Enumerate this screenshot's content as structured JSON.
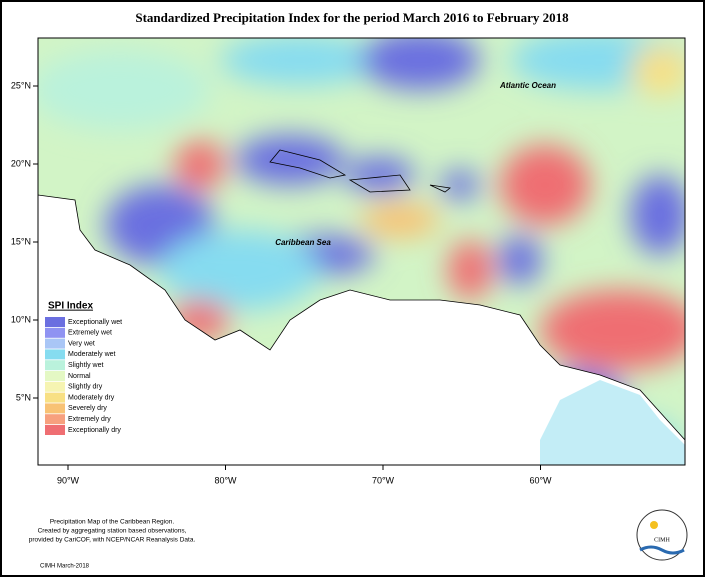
{
  "title": "Standardized Precipitation Index for the period March 2016 to February 2018",
  "lat_labels": [
    "25°N",
    "20°N",
    "15°N",
    "10°N",
    "5°N"
  ],
  "lon_labels": [
    "90°W",
    "80°W",
    "70°W",
    "60°W"
  ],
  "places": {
    "ocean": "Atlantic Ocean",
    "sea": "Caribbean Sea"
  },
  "legend": {
    "title": "SPI Index",
    "items": [
      {
        "label": "Exceptionally wet",
        "color": "#6b6fe0"
      },
      {
        "label": "Extremely wet",
        "color": "#8f93f2"
      },
      {
        "label": "Very wet",
        "color": "#a9c6f6"
      },
      {
        "label": "Moderately wet",
        "color": "#86dcf0"
      },
      {
        "label": "Slightly wet",
        "color": "#baf2dc"
      },
      {
        "label": "Normal",
        "color": "#e4f8c4"
      },
      {
        "label": "Slightly dry",
        "color": "#f6f4b2"
      },
      {
        "label": "Moderately dry",
        "color": "#f8e084"
      },
      {
        "label": "Severely dry",
        "color": "#f8c274"
      },
      {
        "label": "Extremely dry",
        "color": "#f7a07e"
      },
      {
        "label": "Exceptionally dry",
        "color": "#ef6e72"
      }
    ]
  },
  "footer": [
    "Precipitation Map of the Caribbean Region.",
    "Created by aggregating station based observations,",
    "provided by CariCOF, with NCEP/NCAR Reanalysis Data."
  ],
  "credit": "CIMH March-2018",
  "logo": "CIMH"
}
